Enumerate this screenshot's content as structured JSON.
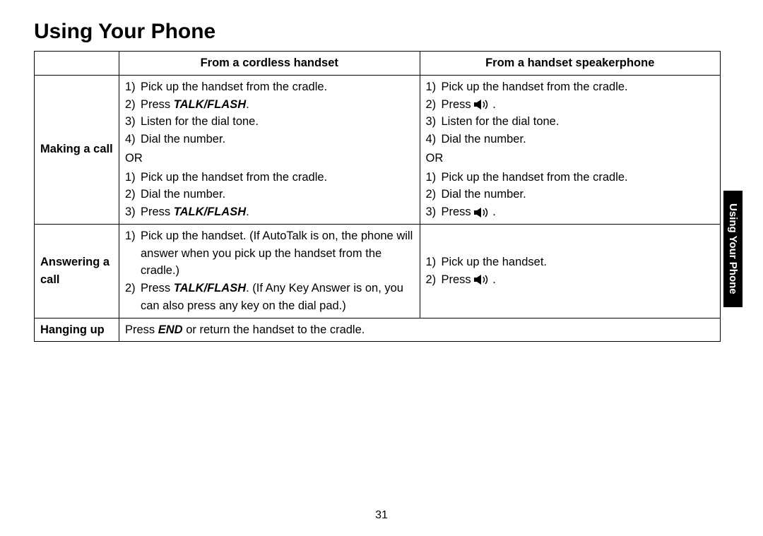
{
  "title": "Using Your Phone",
  "sideTab": "Using Your Phone",
  "pageNumber": "31",
  "headers": {
    "col1": "From a cordless handset",
    "col2": "From a handset speakerphone"
  },
  "rows": {
    "making": {
      "label": "Making a call",
      "col1": {
        "set1": [
          {
            "n": "1)",
            "parts": [
              {
                "t": "Pick up the handset from the cradle."
              }
            ]
          },
          {
            "n": "2)",
            "parts": [
              {
                "t": "Press "
              },
              {
                "t": "TALK/FLASH",
                "style": "bold-italic"
              },
              {
                "t": "."
              }
            ]
          },
          {
            "n": "3)",
            "parts": [
              {
                "t": "Listen for the dial tone."
              }
            ]
          },
          {
            "n": "4)",
            "parts": [
              {
                "t": "Dial the number."
              }
            ]
          }
        ],
        "or": "OR",
        "set2": [
          {
            "n": "1)",
            "parts": [
              {
                "t": "Pick up the handset from the cradle."
              }
            ]
          },
          {
            "n": "2)",
            "parts": [
              {
                "t": "Dial the number."
              }
            ]
          },
          {
            "n": "3)",
            "parts": [
              {
                "t": "Press "
              },
              {
                "t": "TALK/FLASH",
                "style": "bold-italic"
              },
              {
                "t": "."
              }
            ]
          }
        ]
      },
      "col2": {
        "set1": [
          {
            "n": "1)",
            "parts": [
              {
                "t": "Pick up the handset from the cradle."
              }
            ]
          },
          {
            "n": "2)",
            "parts": [
              {
                "t": "Press "
              },
              {
                "icon": "speaker"
              },
              {
                "t": "."
              }
            ]
          },
          {
            "n": "3)",
            "parts": [
              {
                "t": "Listen for the dial tone."
              }
            ]
          },
          {
            "n": "4)",
            "parts": [
              {
                "t": "Dial the number."
              }
            ]
          }
        ],
        "or": "OR",
        "set2": [
          {
            "n": "1)",
            "parts": [
              {
                "t": "Pick up the handset from the cradle."
              }
            ]
          },
          {
            "n": "2)",
            "parts": [
              {
                "t": "Dial the number."
              }
            ]
          },
          {
            "n": "3)",
            "parts": [
              {
                "t": "Press "
              },
              {
                "icon": "speaker"
              },
              {
                "t": "."
              }
            ]
          }
        ]
      }
    },
    "answering": {
      "label": "Answering a call",
      "col1": {
        "set1": [
          {
            "n": "1)",
            "parts": [
              {
                "t": "Pick up the handset. (If AutoTalk is on, the phone will answer when you pick up the handset from the cradle.)"
              }
            ]
          },
          {
            "n": "2)",
            "parts": [
              {
                "t": "Press "
              },
              {
                "t": "TALK/FLASH",
                "style": "bold-italic"
              },
              {
                "t": ". (If Any Key Answer is on, you can also press any key on the dial pad.)"
              }
            ]
          }
        ]
      },
      "col2": {
        "set1": [
          {
            "n": "1)",
            "parts": [
              {
                "t": "Pick up the handset."
              }
            ]
          },
          {
            "n": "2)",
            "parts": [
              {
                "t": "Press "
              },
              {
                "icon": "speaker"
              },
              {
                "t": "."
              }
            ]
          }
        ]
      }
    },
    "hanging": {
      "label": "Hanging up",
      "content": [
        {
          "t": "Press "
        },
        {
          "t": "END",
          "style": "bold-italic"
        },
        {
          "t": " or return the handset to the cradle."
        }
      ]
    }
  },
  "styling": {
    "text_color": "#000000",
    "background_color": "#ffffff",
    "border_color": "#000000",
    "title_fontsize": 30,
    "body_fontsize": 16.5,
    "sidetab_bg": "#000000",
    "sidetab_color": "#ffffff"
  }
}
